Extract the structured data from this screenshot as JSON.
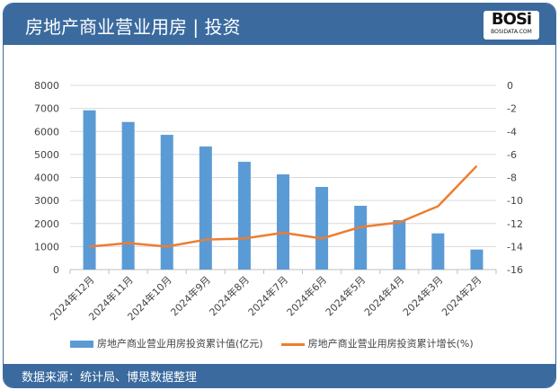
{
  "header": {
    "title": "房地产商业营业用房 | 投资",
    "logo_text": "BOSi",
    "logo_sub": "BOSIDATA.COM"
  },
  "footer": {
    "source": "数据来源：统计局、博思数据整理"
  },
  "colors": {
    "header": "#3a6a9e",
    "bar": "#5b9bd5",
    "line": "#ed7d31"
  },
  "chart_data": {
    "type": "bar+line",
    "categories": [
      "2024年12月",
      "2024年11月",
      "2024年10月",
      "2024年9月",
      "2024年8月",
      "2024年7月",
      "2024年6月",
      "2024年5月",
      "2024年4月",
      "2024年3月",
      "2024年2月"
    ],
    "series": [
      {
        "name": "房地产商业营业用房投资累计值(亿元)",
        "type": "bar",
        "axis": "left",
        "values": [
          6918,
          6411,
          5852,
          5345,
          4681,
          4135,
          3589,
          2770,
          2146,
          1573,
          871
        ]
      },
      {
        "name": "房地产商业营业用房投资累计增长(%)",
        "type": "line",
        "axis": "right",
        "values": [
          -14.0,
          -13.7,
          -14.0,
          -13.4,
          -13.3,
          -12.8,
          -13.3,
          -12.3,
          -11.9,
          -10.5,
          -7.0
        ]
      }
    ],
    "y_left": {
      "min": 0,
      "max": 8000,
      "ticks": [
        0,
        1000,
        2000,
        3000,
        4000,
        5000,
        6000,
        7000,
        8000
      ]
    },
    "y_right": {
      "min": -16,
      "max": 0,
      "ticks": [
        0,
        -2,
        -4,
        -6,
        -8,
        -10,
        -12,
        -14,
        -16
      ]
    },
    "grid": true,
    "legend": "bottom"
  }
}
